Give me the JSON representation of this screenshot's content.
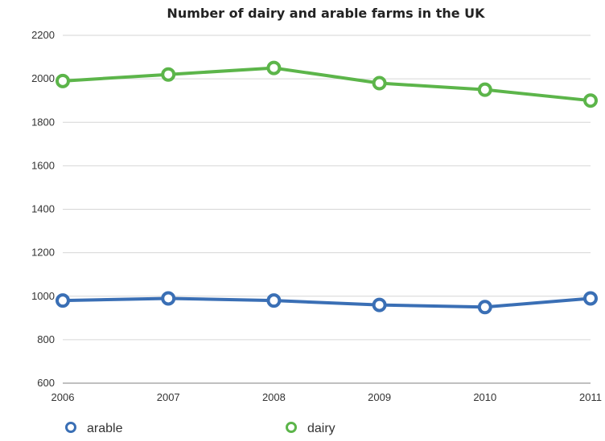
{
  "chart_data": {
    "type": "line",
    "title": "Number of dairy and arable farms in the UK",
    "xlabel": "",
    "ylabel": "",
    "x": [
      "2006",
      "2007",
      "2008",
      "2009",
      "2010",
      "2011"
    ],
    "ylim": [
      600,
      2200
    ],
    "yticks": [
      600,
      800,
      1000,
      1200,
      1400,
      1600,
      1800,
      2000,
      2200
    ],
    "grid": true,
    "legend": "bottom",
    "series": [
      {
        "name": "arable",
        "color": "#3a6fb5",
        "values": [
          980,
          990,
          980,
          960,
          950,
          990
        ]
      },
      {
        "name": "dairy",
        "color": "#5cb54a",
        "values": [
          1990,
          2020,
          2050,
          1980,
          1950,
          1900
        ]
      }
    ]
  }
}
